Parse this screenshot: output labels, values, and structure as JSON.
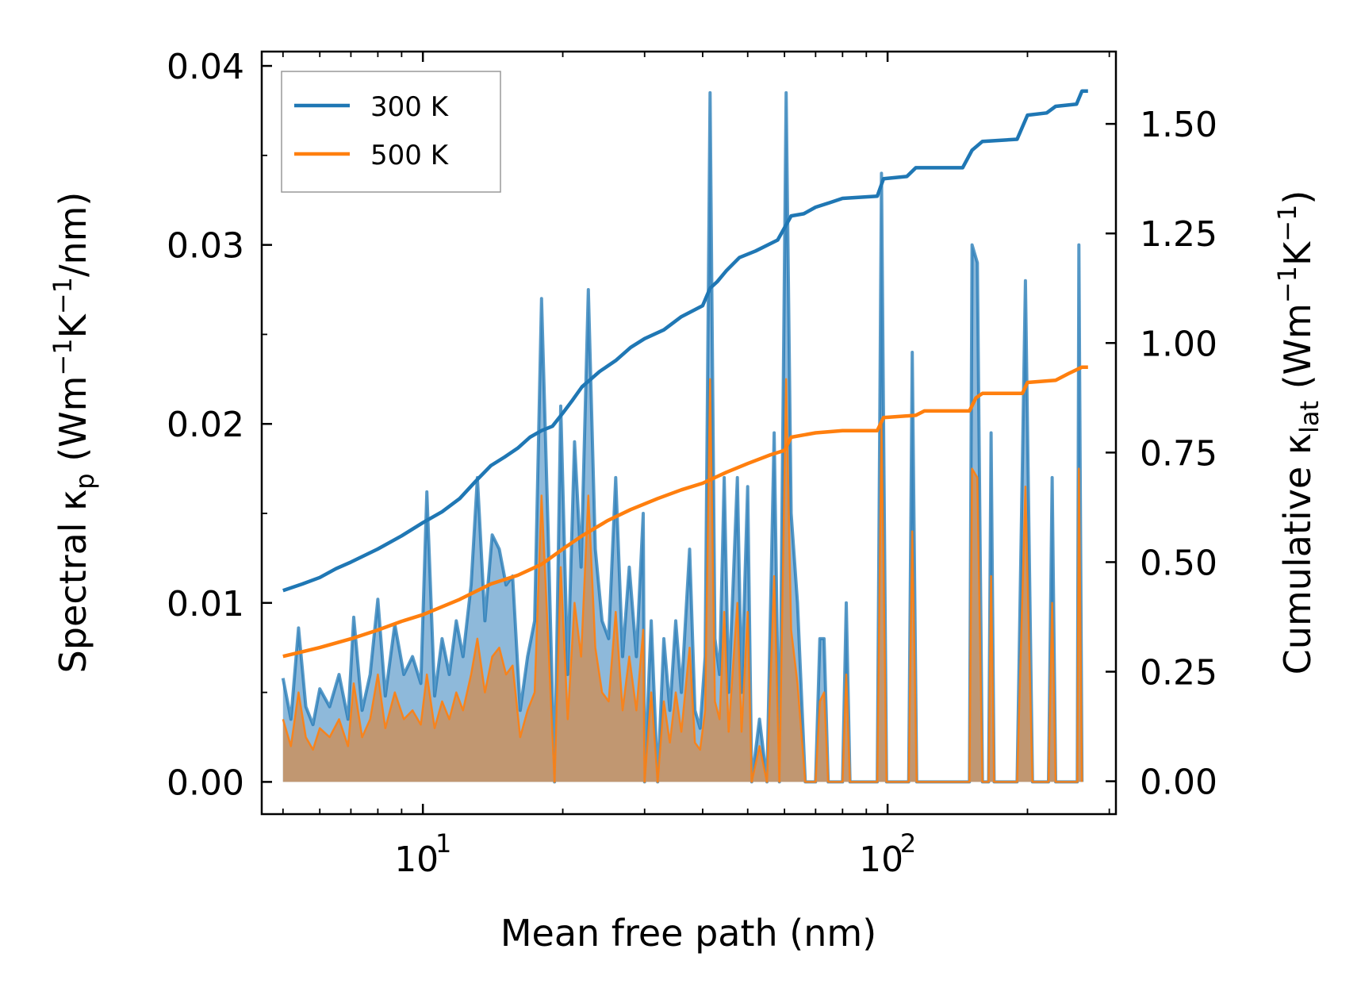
{
  "chart_data": {
    "type": "area",
    "title": "",
    "xlabel": "Mean free path (nm)",
    "xscale": "log",
    "xlim": [
      4.5,
      310
    ],
    "x_ticks": [
      {
        "base": "10",
        "exp": "1",
        "value": 10
      },
      {
        "base": "10",
        "exp": "2",
        "value": 100
      }
    ],
    "left_axis": {
      "label_main": "Spectral κ",
      "label_sub": "p",
      "label_rest": " (Wm",
      "label_sup1": "−1",
      "label_mid": "K",
      "label_sup2": "−1",
      "label_end": "/nm)",
      "ylim": [
        -0.0018,
        0.0408
      ],
      "ticks": [
        "0.00",
        "0.01",
        "0.02",
        "0.03",
        "0.04"
      ],
      "tick_values": [
        0,
        0.01,
        0.02,
        0.03,
        0.04
      ]
    },
    "right_axis": {
      "label_main": "Cumulative κ",
      "label_sub": "lat",
      "label_rest": " (Wm",
      "label_sup1": "−1",
      "label_mid": "K",
      "label_sup2": "−1",
      "label_end": ")",
      "ylim": [
        -0.075,
        1.665
      ],
      "ticks": [
        "0.00",
        "0.25",
        "0.50",
        "0.75",
        "1.00",
        "1.25",
        "1.50"
      ],
      "tick_values": [
        0,
        0.25,
        0.5,
        0.75,
        1.0,
        1.25,
        1.5
      ]
    },
    "legend": {
      "placement": "top-left",
      "entries": [
        {
          "label": "300 K",
          "color": "#1f77b4"
        },
        {
          "label": "500 K",
          "color": "#ff7f0e"
        }
      ]
    },
    "colors": {
      "s300": "#1f77b4",
      "s500": "#ff7f0e",
      "fill300": "#7aadd4",
      "fill500": "#c4956c"
    },
    "spectral_300K": [
      [
        5.0,
        0.0058
      ],
      [
        5.2,
        0.0035
      ],
      [
        5.4,
        0.0086
      ],
      [
        5.6,
        0.0042
      ],
      [
        5.8,
        0.0032
      ],
      [
        6.0,
        0.0052
      ],
      [
        6.3,
        0.0042
      ],
      [
        6.6,
        0.006
      ],
      [
        6.9,
        0.0035
      ],
      [
        7.1,
        0.0092
      ],
      [
        7.4,
        0.004
      ],
      [
        7.7,
        0.006
      ],
      [
        8.0,
        0.0102
      ],
      [
        8.3,
        0.0048
      ],
      [
        8.7,
        0.0088
      ],
      [
        9.1,
        0.006
      ],
      [
        9.5,
        0.007
      ],
      [
        9.9,
        0.0055
      ],
      [
        10.2,
        0.0162
      ],
      [
        10.6,
        0.0048
      ],
      [
        11.0,
        0.008
      ],
      [
        11.4,
        0.006
      ],
      [
        11.8,
        0.009
      ],
      [
        12.2,
        0.007
      ],
      [
        12.7,
        0.011
      ],
      [
        13.1,
        0.017
      ],
      [
        13.6,
        0.009
      ],
      [
        14.1,
        0.0138
      ],
      [
        14.6,
        0.013
      ],
      [
        15.1,
        0.011
      ],
      [
        15.6,
        0.0115
      ],
      [
        16.2,
        0.004
      ],
      [
        16.8,
        0.007
      ],
      [
        17.4,
        0.009
      ],
      [
        18.0,
        0.027
      ],
      [
        18.6,
        0.014
      ],
      [
        19.2,
        0.0
      ],
      [
        19.8,
        0.021
      ],
      [
        20.5,
        0.006
      ],
      [
        21.2,
        0.019
      ],
      [
        21.9,
        0.012
      ],
      [
        22.7,
        0.0275
      ],
      [
        23.5,
        0.013
      ],
      [
        24.3,
        0.009
      ],
      [
        25.1,
        0.008
      ],
      [
        26.0,
        0.017
      ],
      [
        26.9,
        0.007
      ],
      [
        27.8,
        0.012
      ],
      [
        28.8,
        0.007
      ],
      [
        29.8,
        0.015
      ],
      [
        30.0,
        0.0
      ],
      [
        31.0,
        0.009
      ],
      [
        32.0,
        0.0
      ],
      [
        33.0,
        0.008
      ],
      [
        34.0,
        0.004
      ],
      [
        35.0,
        0.009
      ],
      [
        36.0,
        0.005
      ],
      [
        37.5,
        0.013
      ],
      [
        38.5,
        0.004
      ],
      [
        39.5,
        0.003
      ],
      [
        40.5,
        0.007
      ],
      [
        41.5,
        0.0385
      ],
      [
        42.5,
        0.008
      ],
      [
        43.5,
        0.006
      ],
      [
        44.5,
        0.017
      ],
      [
        45.5,
        0.005
      ],
      [
        46.5,
        0.011
      ],
      [
        47.5,
        0.017
      ],
      [
        48.5,
        0.005
      ],
      [
        50.0,
        0.0165
      ],
      [
        51.0,
        0.0
      ],
      [
        53.0,
        0.0035
      ],
      [
        55.0,
        0.0
      ],
      [
        57.0,
        0.0195
      ],
      [
        58.5,
        0.0
      ],
      [
        60.5,
        0.0385
      ],
      [
        62.0,
        0.015
      ],
      [
        64.0,
        0.01
      ],
      [
        66.5,
        0.0
      ],
      [
        70.0,
        0.0
      ],
      [
        71.5,
        0.008
      ],
      [
        73.0,
        0.008
      ],
      [
        74.5,
        0.0
      ],
      [
        80.0,
        0.0
      ],
      [
        81.5,
        0.01
      ],
      [
        83.0,
        0.0
      ],
      [
        95.0,
        0.0
      ],
      [
        97.0,
        0.034
      ],
      [
        99.5,
        0.0
      ],
      [
        111.0,
        0.0
      ],
      [
        113.0,
        0.024
      ],
      [
        115.5,
        0.0
      ],
      [
        150.0,
        0.0
      ],
      [
        152.0,
        0.03
      ],
      [
        156.0,
        0.029
      ],
      [
        160.0,
        0.0
      ],
      [
        165.0,
        0.0
      ],
      [
        167.0,
        0.0195
      ],
      [
        169.5,
        0.0
      ],
      [
        190.0,
        0.0
      ],
      [
        198.0,
        0.028
      ],
      [
        205.0,
        0.0
      ],
      [
        222.0,
        0.0
      ],
      [
        226.0,
        0.017
      ],
      [
        230.0,
        0.0
      ],
      [
        256.0,
        0.0
      ],
      [
        258.0,
        0.03
      ],
      [
        262.0,
        0.0
      ]
    ],
    "spectral_500K": [
      [
        5.0,
        0.0035
      ],
      [
        5.2,
        0.002
      ],
      [
        5.4,
        0.005
      ],
      [
        5.6,
        0.0025
      ],
      [
        5.8,
        0.0018
      ],
      [
        6.0,
        0.003
      ],
      [
        6.3,
        0.0025
      ],
      [
        6.6,
        0.0035
      ],
      [
        6.9,
        0.002
      ],
      [
        7.1,
        0.0055
      ],
      [
        7.4,
        0.0025
      ],
      [
        7.7,
        0.0035
      ],
      [
        8.0,
        0.006
      ],
      [
        8.3,
        0.003
      ],
      [
        8.7,
        0.005
      ],
      [
        9.1,
        0.0035
      ],
      [
        9.5,
        0.004
      ],
      [
        9.9,
        0.0032
      ],
      [
        10.2,
        0.006
      ],
      [
        10.6,
        0.003
      ],
      [
        11.0,
        0.0045
      ],
      [
        11.4,
        0.0035
      ],
      [
        11.8,
        0.005
      ],
      [
        12.2,
        0.004
      ],
      [
        12.7,
        0.006
      ],
      [
        13.1,
        0.008
      ],
      [
        13.6,
        0.005
      ],
      [
        14.1,
        0.007
      ],
      [
        14.6,
        0.0075
      ],
      [
        15.1,
        0.006
      ],
      [
        15.6,
        0.0065
      ],
      [
        16.2,
        0.0025
      ],
      [
        16.8,
        0.004
      ],
      [
        17.4,
        0.005
      ],
      [
        18.0,
        0.016
      ],
      [
        18.6,
        0.008
      ],
      [
        19.2,
        0.0
      ],
      [
        19.8,
        0.012
      ],
      [
        20.5,
        0.0035
      ],
      [
        21.2,
        0.01
      ],
      [
        21.9,
        0.007
      ],
      [
        22.7,
        0.016
      ],
      [
        23.5,
        0.0075
      ],
      [
        24.3,
        0.005
      ],
      [
        25.1,
        0.0045
      ],
      [
        26.0,
        0.0095
      ],
      [
        26.9,
        0.004
      ],
      [
        27.8,
        0.007
      ],
      [
        28.8,
        0.004
      ],
      [
        29.8,
        0.0085
      ],
      [
        30.0,
        0.0
      ],
      [
        31.0,
        0.005
      ],
      [
        32.0,
        0.0
      ],
      [
        33.0,
        0.0045
      ],
      [
        34.0,
        0.0022
      ],
      [
        35.0,
        0.005
      ],
      [
        36.0,
        0.0028
      ],
      [
        37.5,
        0.0075
      ],
      [
        38.5,
        0.0022
      ],
      [
        39.5,
        0.0018
      ],
      [
        40.5,
        0.004
      ],
      [
        41.5,
        0.0225
      ],
      [
        42.5,
        0.0045
      ],
      [
        43.5,
        0.0035
      ],
      [
        44.5,
        0.0095
      ],
      [
        45.5,
        0.0028
      ],
      [
        46.5,
        0.0065
      ],
      [
        47.5,
        0.01
      ],
      [
        48.5,
        0.0028
      ],
      [
        50.0,
        0.0095
      ],
      [
        51.0,
        0.0
      ],
      [
        53.0,
        0.002
      ],
      [
        55.0,
        0.0
      ],
      [
        57.0,
        0.0115
      ],
      [
        58.5,
        0.0
      ],
      [
        60.5,
        0.0225
      ],
      [
        62.0,
        0.0085
      ],
      [
        64.0,
        0.0055
      ],
      [
        66.5,
        0.0
      ],
      [
        70.0,
        0.0
      ],
      [
        71.5,
        0.0045
      ],
      [
        73.0,
        0.005
      ],
      [
        74.5,
        0.0
      ],
      [
        80.0,
        0.0
      ],
      [
        81.5,
        0.006
      ],
      [
        83.0,
        0.0
      ],
      [
        95.0,
        0.0
      ],
      [
        97.0,
        0.02
      ],
      [
        99.5,
        0.0
      ],
      [
        111.0,
        0.0
      ],
      [
        113.0,
        0.014
      ],
      [
        115.5,
        0.0
      ],
      [
        150.0,
        0.0
      ],
      [
        152.0,
        0.0175
      ],
      [
        156.0,
        0.017
      ],
      [
        160.0,
        0.0
      ],
      [
        165.0,
        0.0
      ],
      [
        167.0,
        0.0115
      ],
      [
        169.5,
        0.0
      ],
      [
        190.0,
        0.0
      ],
      [
        198.0,
        0.0165
      ],
      [
        205.0,
        0.0
      ],
      [
        222.0,
        0.0
      ],
      [
        226.0,
        0.01
      ],
      [
        230.0,
        0.0
      ],
      [
        256.0,
        0.0
      ],
      [
        258.0,
        0.0175
      ],
      [
        262.0,
        0.0
      ]
    ],
    "cumulative_300K": [
      [
        5.0,
        0.435
      ],
      [
        5.5,
        0.45
      ],
      [
        6.0,
        0.465
      ],
      [
        6.5,
        0.485
      ],
      [
        7.0,
        0.5
      ],
      [
        8.0,
        0.53
      ],
      [
        9.0,
        0.56
      ],
      [
        10.0,
        0.59
      ],
      [
        11.0,
        0.615
      ],
      [
        12.0,
        0.645
      ],
      [
        13.0,
        0.685
      ],
      [
        14.0,
        0.72
      ],
      [
        15.0,
        0.74
      ],
      [
        16.0,
        0.76
      ],
      [
        17.0,
        0.785
      ],
      [
        18.0,
        0.8
      ],
      [
        19.0,
        0.81
      ],
      [
        20.0,
        0.84
      ],
      [
        21.0,
        0.87
      ],
      [
        22.0,
        0.9
      ],
      [
        24.0,
        0.935
      ],
      [
        26.0,
        0.96
      ],
      [
        28.0,
        0.99
      ],
      [
        30.0,
        1.01
      ],
      [
        33.0,
        1.03
      ],
      [
        36.0,
        1.06
      ],
      [
        40.0,
        1.085
      ],
      [
        41.5,
        1.125
      ],
      [
        43.0,
        1.14
      ],
      [
        45.0,
        1.165
      ],
      [
        48.0,
        1.195
      ],
      [
        52.0,
        1.21
      ],
      [
        58.0,
        1.235
      ],
      [
        62.0,
        1.29
      ],
      [
        66.0,
        1.295
      ],
      [
        70.0,
        1.31
      ],
      [
        75.0,
        1.32
      ],
      [
        80.0,
        1.33
      ],
      [
        95.0,
        1.335
      ],
      [
        98.0,
        1.375
      ],
      [
        110.0,
        1.38
      ],
      [
        115.0,
        1.4
      ],
      [
        145.0,
        1.4
      ],
      [
        152.0,
        1.44
      ],
      [
        160.0,
        1.46
      ],
      [
        190.0,
        1.465
      ],
      [
        200.0,
        1.52
      ],
      [
        220.0,
        1.525
      ],
      [
        230.0,
        1.54
      ],
      [
        255.0,
        1.545
      ],
      [
        262.0,
        1.575
      ],
      [
        270.0,
        1.575
      ]
    ],
    "cumulative_500K": [
      [
        5.0,
        0.285
      ],
      [
        6.0,
        0.305
      ],
      [
        7.0,
        0.325
      ],
      [
        8.0,
        0.345
      ],
      [
        9.0,
        0.365
      ],
      [
        10.0,
        0.38
      ],
      [
        12.0,
        0.415
      ],
      [
        14.0,
        0.45
      ],
      [
        16.0,
        0.47
      ],
      [
        18.0,
        0.495
      ],
      [
        20.0,
        0.53
      ],
      [
        22.0,
        0.56
      ],
      [
        25.0,
        0.595
      ],
      [
        28.0,
        0.62
      ],
      [
        32.0,
        0.645
      ],
      [
        36.0,
        0.665
      ],
      [
        40.0,
        0.68
      ],
      [
        45.0,
        0.705
      ],
      [
        50.0,
        0.725
      ],
      [
        56.0,
        0.745
      ],
      [
        60.0,
        0.755
      ],
      [
        62.0,
        0.785
      ],
      [
        70.0,
        0.795
      ],
      [
        80.0,
        0.8
      ],
      [
        95.0,
        0.8
      ],
      [
        98.0,
        0.83
      ],
      [
        115.0,
        0.835
      ],
      [
        120.0,
        0.845
      ],
      [
        150.0,
        0.845
      ],
      [
        155.0,
        0.875
      ],
      [
        160.0,
        0.885
      ],
      [
        195.0,
        0.885
      ],
      [
        200.0,
        0.91
      ],
      [
        230.0,
        0.915
      ],
      [
        245.0,
        0.93
      ],
      [
        262.0,
        0.945
      ],
      [
        270.0,
        0.945
      ]
    ]
  }
}
